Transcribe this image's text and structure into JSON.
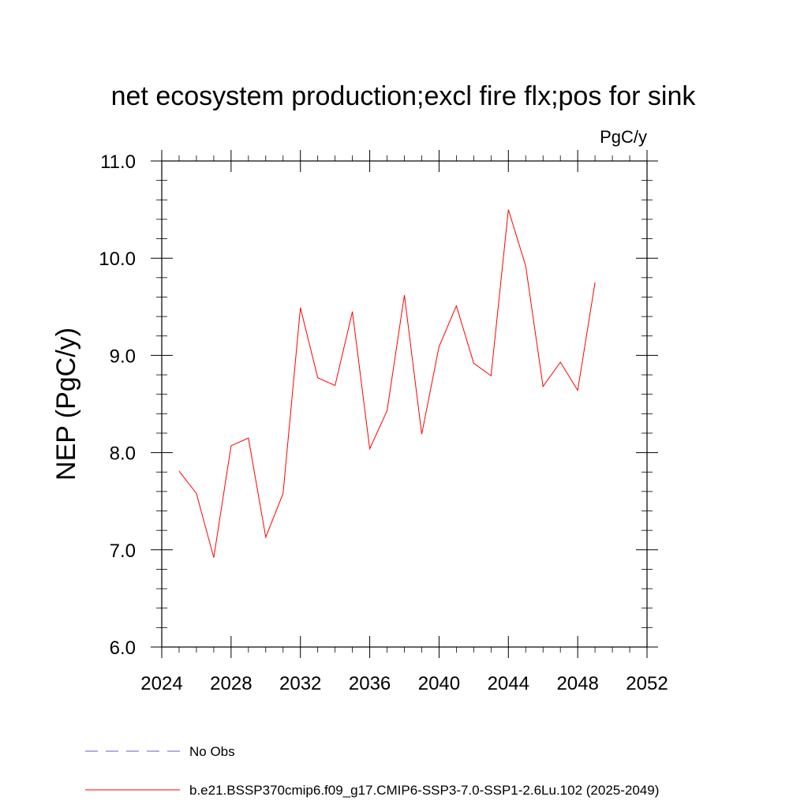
{
  "chart_data": {
    "type": "line",
    "title": "net ecosystem production;excl fire flx;pos for sink",
    "units": "PgC/y",
    "ylabel": "NEP  (PgC/y)",
    "xlabel": "",
    "xlim": [
      2024,
      2052
    ],
    "ylim": [
      6.0,
      11.0
    ],
    "xticks": [
      2024,
      2028,
      2032,
      2036,
      2040,
      2044,
      2048,
      2052
    ],
    "xtick_labels": [
      "2024",
      "2028",
      "2032",
      "2036",
      "2040",
      "2044",
      "2048",
      "2052"
    ],
    "yticks": [
      6.0,
      7.0,
      8.0,
      9.0,
      10.0,
      11.0
    ],
    "ytick_labels": [
      "6.0",
      "7.0",
      "8.0",
      "9.0",
      "10.0",
      "11.0"
    ],
    "grid": false,
    "legend_position": "bottom-left",
    "series": [
      {
        "name": "b.e21.BSSP370cmip6.f09_g17.CMIP6-SSP3-7.0-SSP1-2.6Lu.102 (2025-2049)",
        "color": "#ff0000",
        "style": "solid",
        "x": [
          2025,
          2026,
          2027,
          2028,
          2029,
          2030,
          2031,
          2032,
          2033,
          2034,
          2035,
          2036,
          2037,
          2038,
          2039,
          2040,
          2041,
          2042,
          2043,
          2044,
          2045,
          2046,
          2047,
          2048,
          2049
        ],
        "y": [
          7.81,
          7.58,
          6.92,
          8.07,
          8.15,
          7.13,
          7.58,
          9.49,
          8.77,
          8.69,
          9.45,
          8.04,
          8.43,
          9.62,
          8.19,
          9.09,
          9.51,
          8.92,
          8.79,
          10.5,
          9.92,
          8.68,
          8.93,
          8.64,
          9.75
        ]
      }
    ],
    "legend": [
      {
        "label": "No Obs",
        "color": "#6a5acd",
        "style": "dashed"
      },
      {
        "label": "b.e21.BSSP370cmip6.f09_g17.CMIP6-SSP3-7.0-SSP1-2.6Lu.102 (2025-2049)",
        "color": "#ff0000",
        "style": "solid"
      }
    ]
  }
}
